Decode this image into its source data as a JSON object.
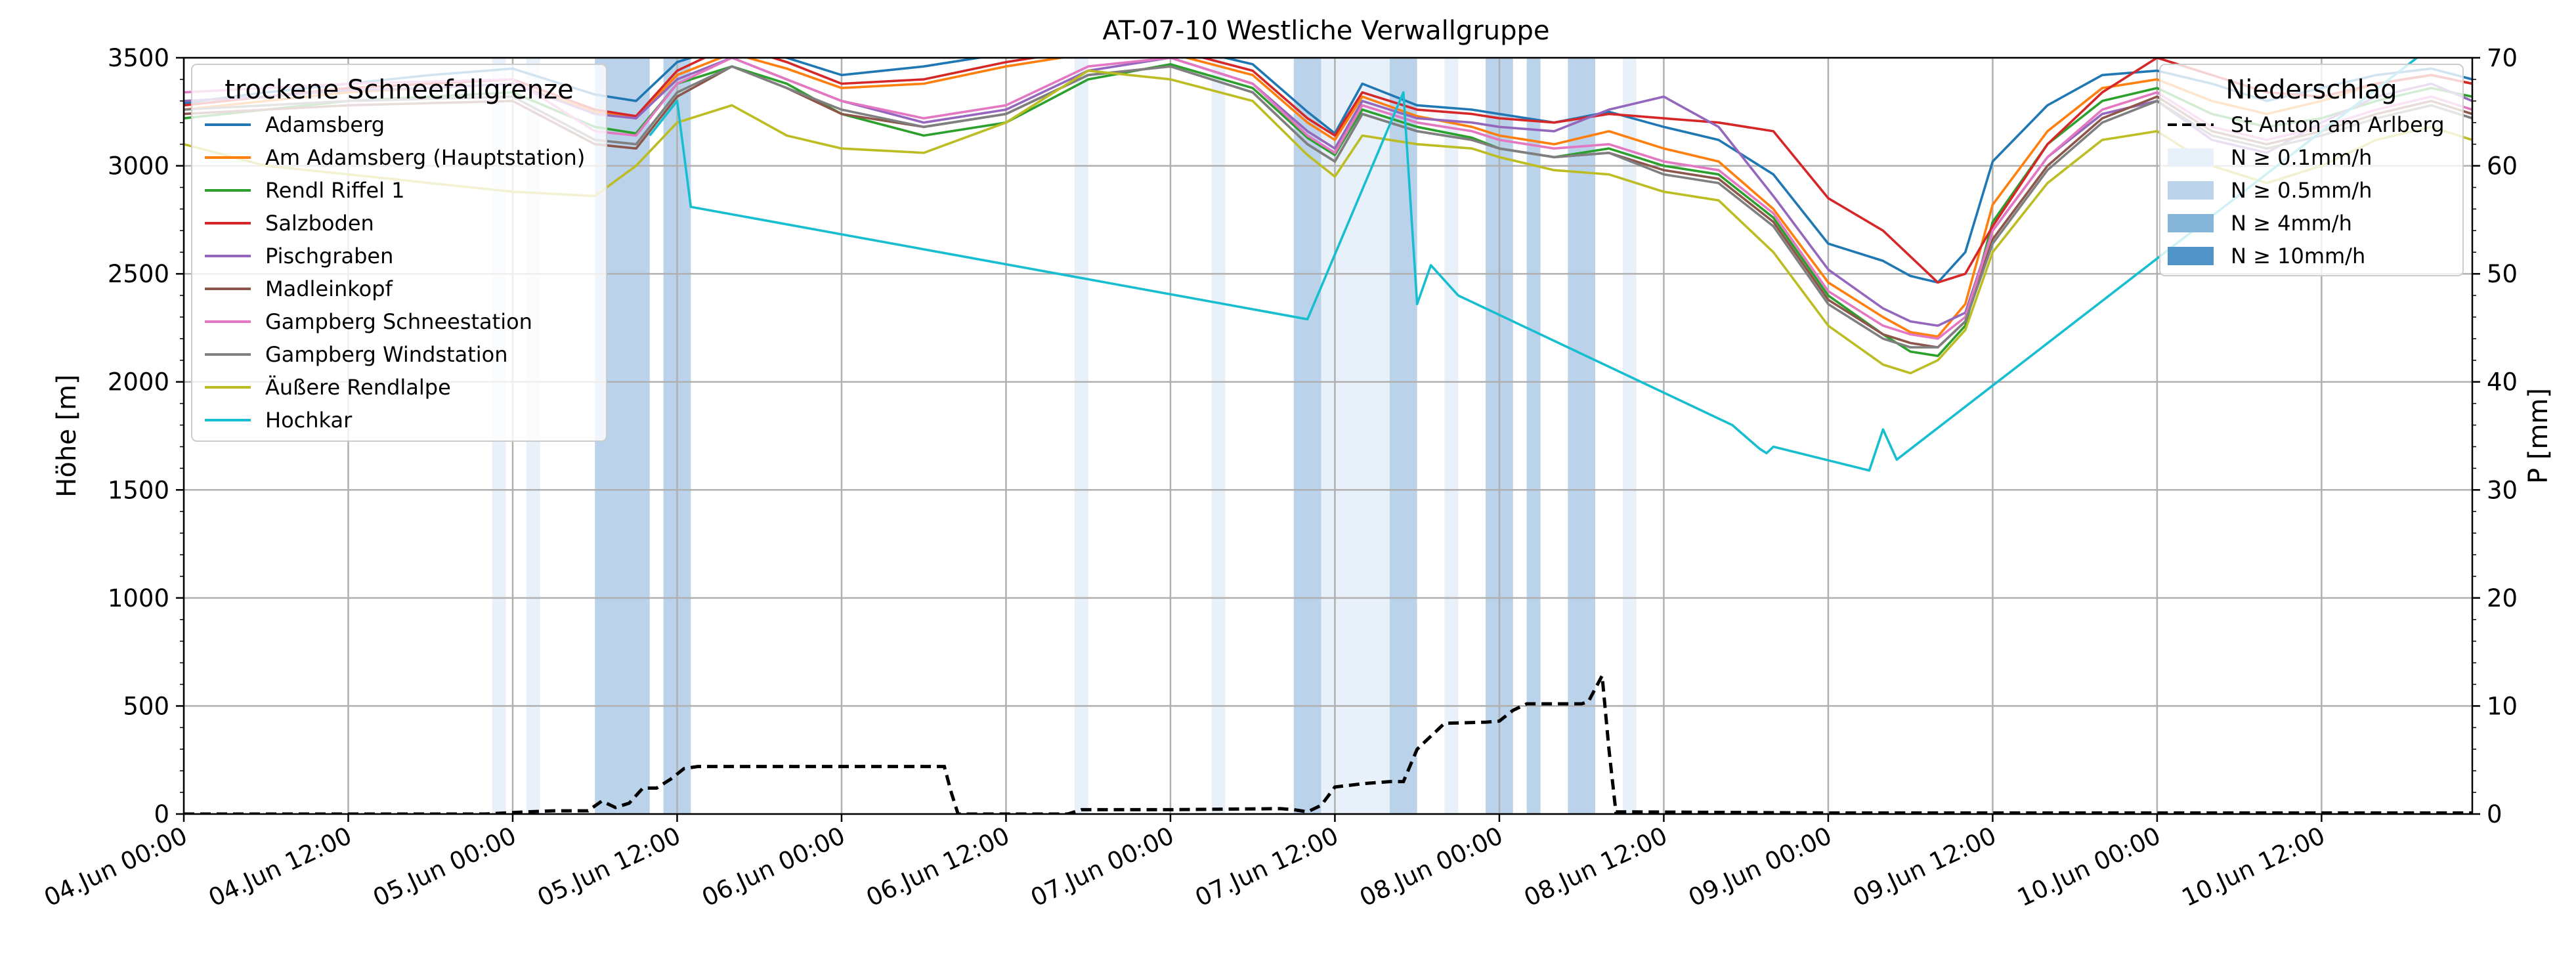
{
  "chart_data": {
    "type": "line",
    "title": "AT-07-10 Westliche Verwallgruppe",
    "ylabel": "Höhe [m]",
    "y2label": "P [mm]",
    "ylim": [
      0,
      3500
    ],
    "y2lim": [
      0,
      70
    ],
    "yticks": [
      0,
      500,
      1000,
      1500,
      2000,
      2500,
      3000,
      3500
    ],
    "y2ticks": [
      0,
      10,
      20,
      30,
      40,
      50,
      60,
      70
    ],
    "x_unit": "hours since 04.Jun 00:00",
    "xlim": [
      0,
      167
    ],
    "xticks": [
      {
        "x": 0,
        "label": "04.Jun 00:00"
      },
      {
        "x": 12,
        "label": "04.Jun 12:00"
      },
      {
        "x": 24,
        "label": "05.Jun 00:00"
      },
      {
        "x": 36,
        "label": "05.Jun 12:00"
      },
      {
        "x": 48,
        "label": "06.Jun 00:00"
      },
      {
        "x": 60,
        "label": "06.Jun 12:00"
      },
      {
        "x": 72,
        "label": "07.Jun 00:00"
      },
      {
        "x": 84,
        "label": "07.Jun 12:00"
      },
      {
        "x": 96,
        "label": "08.Jun 00:00"
      },
      {
        "x": 108,
        "label": "08.Jun 12:00"
      },
      {
        "x": 120,
        "label": "09.Jun 00:00"
      },
      {
        "x": 132,
        "label": "09.Jun 12:00"
      },
      {
        "x": 144,
        "label": "10.Jun 00:00"
      },
      {
        "x": 156,
        "label": "10.Jun 12:00"
      }
    ],
    "grid": true,
    "legend_left": {
      "title": "trockene Schneefallgrenze",
      "placement": "top-left"
    },
    "legend_right": {
      "title": "Niederschlag",
      "placement": "top-right",
      "line_label": "St Anton am Arlberg",
      "bands": [
        {
          "label": "N ≥ 0.1mm/h",
          "color": "#e8f0fa"
        },
        {
          "label": "N ≥ 0.5mm/h",
          "color": "#bad3ea"
        },
        {
          "label": "N ≥ 4mm/h",
          "color": "#85b6da"
        },
        {
          "label": "N ≥ 10mm/h",
          "color": "#4f93c7"
        }
      ]
    },
    "precip_bands": [
      {
        "x0": 22.5,
        "x1": 23.5,
        "level": 1
      },
      {
        "x0": 25,
        "x1": 26,
        "level": 1
      },
      {
        "x0": 30,
        "x1": 34,
        "level": 2
      },
      {
        "x0": 35,
        "x1": 37,
        "level": 2
      },
      {
        "x0": 65,
        "x1": 66,
        "level": 1
      },
      {
        "x0": 75,
        "x1": 76,
        "level": 1
      },
      {
        "x0": 81,
        "x1": 83,
        "level": 2
      },
      {
        "x0": 83,
        "x1": 88,
        "level": 1
      },
      {
        "x0": 88,
        "x1": 90,
        "level": 2
      },
      {
        "x0": 92,
        "x1": 93,
        "level": 1
      },
      {
        "x0": 95,
        "x1": 97,
        "level": 2
      },
      {
        "x0": 98,
        "x1": 99,
        "level": 2
      },
      {
        "x0": 101,
        "x1": 103,
        "level": 2
      },
      {
        "x0": 105,
        "x1": 106,
        "level": 1
      }
    ],
    "series": [
      {
        "name": "Adamsberg",
        "color": "#1f77b4",
        "x": [
          0,
          6,
          12,
          18,
          24,
          30,
          33,
          36,
          40,
          44,
          48,
          54,
          60,
          66,
          72,
          78,
          82,
          84,
          86,
          90,
          94,
          96,
          100,
          104,
          108,
          112,
          116,
          120,
          124,
          126,
          128,
          130,
          132,
          136,
          140,
          144,
          148,
          152,
          156,
          160,
          164,
          167
        ],
        "y": [
          3290,
          3340,
          3380,
          3420,
          3450,
          3330,
          3300,
          3480,
          3560,
          3500,
          3420,
          3460,
          3520,
          3560,
          3560,
          3470,
          3250,
          3150,
          3380,
          3280,
          3260,
          3240,
          3200,
          3250,
          3180,
          3120,
          2960,
          2640,
          2560,
          2490,
          2460,
          2600,
          3020,
          3280,
          3420,
          3440,
          3380,
          3300,
          3360,
          3420,
          3450,
          3400
        ]
      },
      {
        "name": "Am Adamsberg (Hauptstation)",
        "color": "#ff7f0e",
        "x": [
          0,
          6,
          12,
          18,
          24,
          30,
          33,
          36,
          40,
          44,
          48,
          54,
          60,
          66,
          72,
          78,
          82,
          84,
          86,
          90,
          94,
          96,
          100,
          104,
          108,
          112,
          116,
          120,
          124,
          126,
          128,
          130,
          132,
          136,
          140,
          144,
          148,
          152,
          156,
          160,
          164,
          167
        ],
        "y": [
          3260,
          3300,
          3340,
          3360,
          3380,
          3250,
          3220,
          3420,
          3520,
          3450,
          3360,
          3380,
          3460,
          3520,
          3520,
          3420,
          3200,
          3120,
          3320,
          3230,
          3180,
          3140,
          3100,
          3160,
          3080,
          3020,
          2800,
          2460,
          2300,
          2230,
          2210,
          2360,
          2820,
          3160,
          3360,
          3400,
          3300,
          3240,
          3300,
          3380,
          3420,
          3380
        ]
      },
      {
        "name": "Rendl Riffel 1",
        "color": "#2ca02c",
        "x": [
          0,
          6,
          12,
          18,
          24,
          30,
          33,
          36,
          40,
          44,
          48,
          54,
          60,
          66,
          72,
          78,
          82,
          84,
          86,
          90,
          94,
          96,
          100,
          104,
          108,
          112,
          116,
          120,
          124,
          126,
          128,
          130,
          132,
          136,
          140,
          144,
          148,
          152,
          156,
          160,
          164,
          167
        ],
        "y": [
          3220,
          3260,
          3300,
          3320,
          3340,
          3180,
          3150,
          3380,
          3460,
          3380,
          3240,
          3140,
          3200,
          3400,
          3470,
          3360,
          3130,
          3050,
          3260,
          3180,
          3130,
          3080,
          3040,
          3080,
          3000,
          2960,
          2760,
          2400,
          2220,
          2140,
          2120,
          2260,
          2740,
          3100,
          3300,
          3360,
          3240,
          3180,
          3220,
          3300,
          3360,
          3320
        ]
      },
      {
        "name": "Salzboden",
        "color": "#d62728",
        "x": [
          0,
          6,
          12,
          18,
          24,
          30,
          33,
          36,
          40,
          44,
          48,
          54,
          60,
          66,
          72,
          78,
          82,
          84,
          86,
          90,
          94,
          96,
          100,
          104,
          108,
          112,
          116,
          120,
          124,
          126,
          128,
          130,
          132,
          136,
          140,
          144,
          148,
          152,
          156,
          160,
          164,
          167
        ],
        "y": [
          3280,
          3320,
          3360,
          3380,
          3400,
          3260,
          3230,
          3440,
          3560,
          3480,
          3380,
          3400,
          3480,
          3540,
          3540,
          3440,
          3220,
          3140,
          3340,
          3260,
          3240,
          3220,
          3200,
          3240,
          3220,
          3200,
          3160,
          2850,
          2700,
          2580,
          2460,
          2500,
          2720,
          3100,
          3340,
          3500,
          3420,
          3340,
          3320,
          3380,
          3420,
          3380
        ]
      },
      {
        "name": "Pischgraben",
        "color": "#9467bd",
        "x": [
          0,
          6,
          12,
          18,
          24,
          30,
          33,
          36,
          40,
          44,
          48,
          54,
          60,
          66,
          72,
          78,
          82,
          84,
          86,
          90,
          94,
          96,
          100,
          104,
          108,
          112,
          116,
          120,
          124,
          126,
          128,
          130,
          132,
          136,
          140,
          144,
          148,
          152,
          156,
          160,
          164,
          167
        ],
        "y": [
          3300,
          3320,
          3350,
          3360,
          3380,
          3240,
          3220,
          3400,
          3500,
          3400,
          3300,
          3200,
          3260,
          3440,
          3500,
          3380,
          3160,
          3080,
          3300,
          3220,
          3200,
          3180,
          3160,
          3260,
          3320,
          3180,
          2860,
          2520,
          2340,
          2280,
          2260,
          2320,
          2700,
          3040,
          3240,
          3300,
          3120,
          3060,
          3200,
          3320,
          3380,
          3300
        ]
      },
      {
        "name": "Madleinkopf",
        "color": "#8c564b",
        "x": [
          0,
          6,
          12,
          18,
          24,
          30,
          33,
          36,
          40,
          44,
          48,
          54,
          60,
          66,
          72,
          78,
          82,
          84,
          86,
          90,
          94,
          96,
          100,
          104,
          108,
          112,
          116,
          120,
          124,
          126,
          128,
          130,
          132,
          136,
          140,
          144,
          148,
          152,
          156,
          160,
          164,
          167
        ],
        "y": [
          3240,
          3260,
          3280,
          3290,
          3300,
          3100,
          3080,
          3320,
          3460,
          3360,
          3240,
          3180,
          3240,
          3420,
          3460,
          3340,
          3100,
          3020,
          3240,
          3160,
          3120,
          3080,
          3040,
          3060,
          2980,
          2940,
          2740,
          2380,
          2220,
          2180,
          2160,
          2280,
          2660,
          3000,
          3220,
          3320,
          3160,
          3100,
          3160,
          3240,
          3300,
          3240
        ]
      },
      {
        "name": "Gampberg Schneestation",
        "color": "#e377c2",
        "x": [
          0,
          6,
          12,
          18,
          24,
          30,
          33,
          36,
          40,
          44,
          48,
          54,
          60,
          66,
          72,
          78,
          82,
          84,
          86,
          90,
          94,
          96,
          100,
          104,
          108,
          112,
          116,
          120,
          124,
          126,
          128,
          130,
          132,
          136,
          140,
          144,
          148,
          152,
          156,
          160,
          164,
          167
        ],
        "y": [
          3340,
          3360,
          3380,
          3390,
          3400,
          3160,
          3140,
          3380,
          3500,
          3400,
          3300,
          3220,
          3280,
          3460,
          3500,
          3380,
          3140,
          3060,
          3280,
          3200,
          3160,
          3120,
          3080,
          3100,
          3020,
          2980,
          2780,
          2420,
          2260,
          2220,
          2200,
          2300,
          2700,
          3040,
          3260,
          3340,
          3180,
          3120,
          3180,
          3260,
          3320,
          3260
        ]
      },
      {
        "name": "Gampberg Windstation",
        "color": "#7f7f7f",
        "x": [
          0,
          6,
          12,
          18,
          24,
          30,
          33,
          36,
          40,
          44,
          48,
          54,
          60,
          66,
          72,
          78,
          82,
          84,
          86,
          90,
          94,
          96,
          100,
          104,
          108,
          112,
          116,
          120,
          124,
          126,
          128,
          130,
          132,
          136,
          140,
          144,
          148,
          152,
          156,
          160,
          164,
          167
        ],
        "y": [
          3260,
          3280,
          3300,
          3310,
          3320,
          3120,
          3100,
          3340,
          3460,
          3360,
          3260,
          3180,
          3240,
          3420,
          3460,
          3340,
          3100,
          3020,
          3240,
          3160,
          3120,
          3080,
          3040,
          3060,
          2960,
          2920,
          2720,
          2360,
          2200,
          2160,
          2160,
          2280,
          2640,
          2980,
          3200,
          3300,
          3140,
          3080,
          3140,
          3220,
          3280,
          3220
        ]
      },
      {
        "name": "Äußere Rendlalpe",
        "color": "#bcbd22",
        "x": [
          0,
          6,
          12,
          18,
          24,
          30,
          33,
          36,
          40,
          44,
          48,
          54,
          60,
          66,
          72,
          78,
          82,
          84,
          86,
          90,
          94,
          96,
          100,
          104,
          108,
          112,
          116,
          120,
          124,
          126,
          128,
          130,
          132,
          136,
          140,
          144,
          148,
          152,
          156,
          160,
          164,
          167
        ],
        "y": [
          3100,
          3000,
          2960,
          2920,
          2880,
          2860,
          3000,
          3200,
          3280,
          3140,
          3080,
          3060,
          3200,
          3440,
          3400,
          3300,
          3050,
          2950,
          3140,
          3100,
          3080,
          3040,
          2980,
          2960,
          2880,
          2840,
          2600,
          2260,
          2080,
          2040,
          2100,
          2240,
          2600,
          2920,
          3120,
          3160,
          3000,
          2920,
          3000,
          3120,
          3180,
          3120
        ]
      },
      {
        "name": "Hochkar",
        "color": "#17becf",
        "x": [
          34,
          36,
          37,
          82,
          89,
          90,
          91,
          93,
          113,
          115,
          115.5,
          116,
          123,
          124,
          125,
          165,
          167
        ],
        "y": [
          3140,
          3300,
          2810,
          2290,
          3340,
          2360,
          2540,
          2400,
          1800,
          1690,
          1670,
          1700,
          1590,
          1780,
          1640,
          3600,
          3600
        ]
      }
    ],
    "precip_series": {
      "name": "St Anton am Arlberg",
      "color": "#000000",
      "x": [
        0,
        12,
        22,
        25,
        27,
        29.5,
        30.5,
        31.5,
        32.5,
        33.5,
        34.5,
        35.5,
        36.5,
        37.5,
        38.5,
        40,
        48,
        55,
        55.5,
        56,
        56.5,
        64.5,
        65.5,
        72,
        80,
        81,
        82,
        83,
        84,
        86,
        88,
        89,
        90,
        92,
        95,
        96,
        97,
        98,
        100,
        102,
        102.5,
        103,
        103.5,
        104,
        104.5,
        105,
        120,
        167
      ],
      "y": [
        0,
        0,
        0,
        0.2,
        0.3,
        0.3,
        1.2,
        0.6,
        1,
        2.4,
        2.4,
        3.2,
        4.2,
        4.4,
        4.4,
        4.4,
        4.4,
        4.4,
        4.4,
        2,
        0,
        0,
        0.4,
        0.4,
        0.5,
        0.4,
        0.2,
        0.8,
        2.5,
        2.8,
        3,
        3,
        6,
        8.4,
        8.5,
        8.6,
        9.6,
        10.2,
        10.2,
        10.2,
        10.4,
        11.6,
        12.8,
        6,
        0.2,
        0.2,
        0.1,
        0.1
      ]
    }
  }
}
